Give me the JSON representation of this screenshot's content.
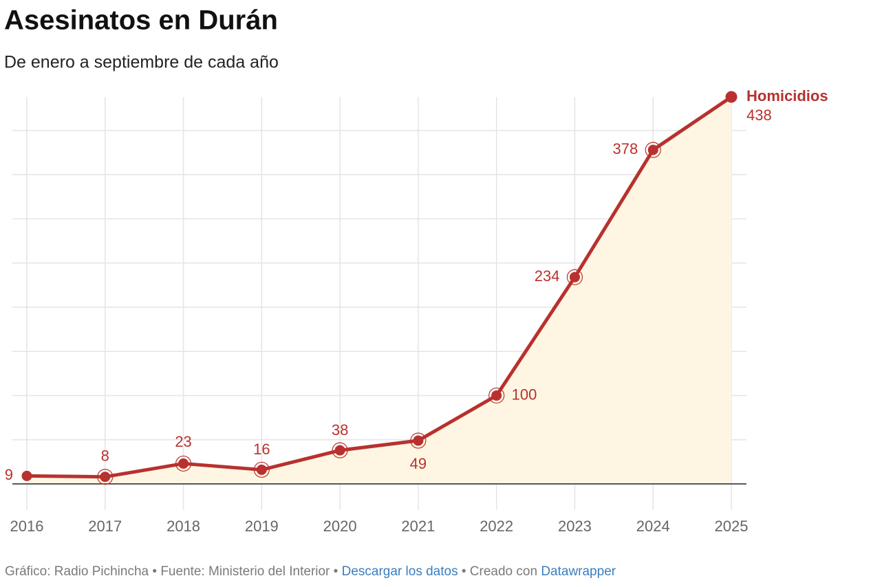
{
  "chart_data": {
    "type": "line",
    "title": "Asesinatos en Durán",
    "subtitle": "De enero a septiembre de cada año",
    "x": [
      2016,
      2017,
      2018,
      2019,
      2020,
      2021,
      2022,
      2023,
      2024,
      2025
    ],
    "series": [
      {
        "name": "Homicidios",
        "color": "#b8312f",
        "area_color": "#fef6e2",
        "values": [
          9,
          8,
          23,
          16,
          38,
          49,
          100,
          234,
          378,
          438
        ]
      }
    ],
    "xlim": [
      2016,
      2025
    ],
    "xticks": [
      2016,
      2017,
      2018,
      2019,
      2020,
      2021,
      2022,
      2023,
      2024,
      2025
    ],
    "ylim": [
      0,
      438
    ],
    "yticks": [
      0,
      50,
      100,
      150,
      200,
      250,
      300,
      350,
      400
    ],
    "grid": true
  },
  "footer": {
    "separator": "•",
    "parts": [
      {
        "text": "Gráfico: Radio Pichincha",
        "link": false
      },
      {
        "text": "Fuente: Ministerio del Interior",
        "link": false
      },
      {
        "text": "Descargar los datos",
        "link": true
      },
      {
        "text": "Creado con",
        "link": false,
        "joined_with_next": true
      },
      {
        "text": "Datawrapper",
        "link": true
      }
    ]
  }
}
